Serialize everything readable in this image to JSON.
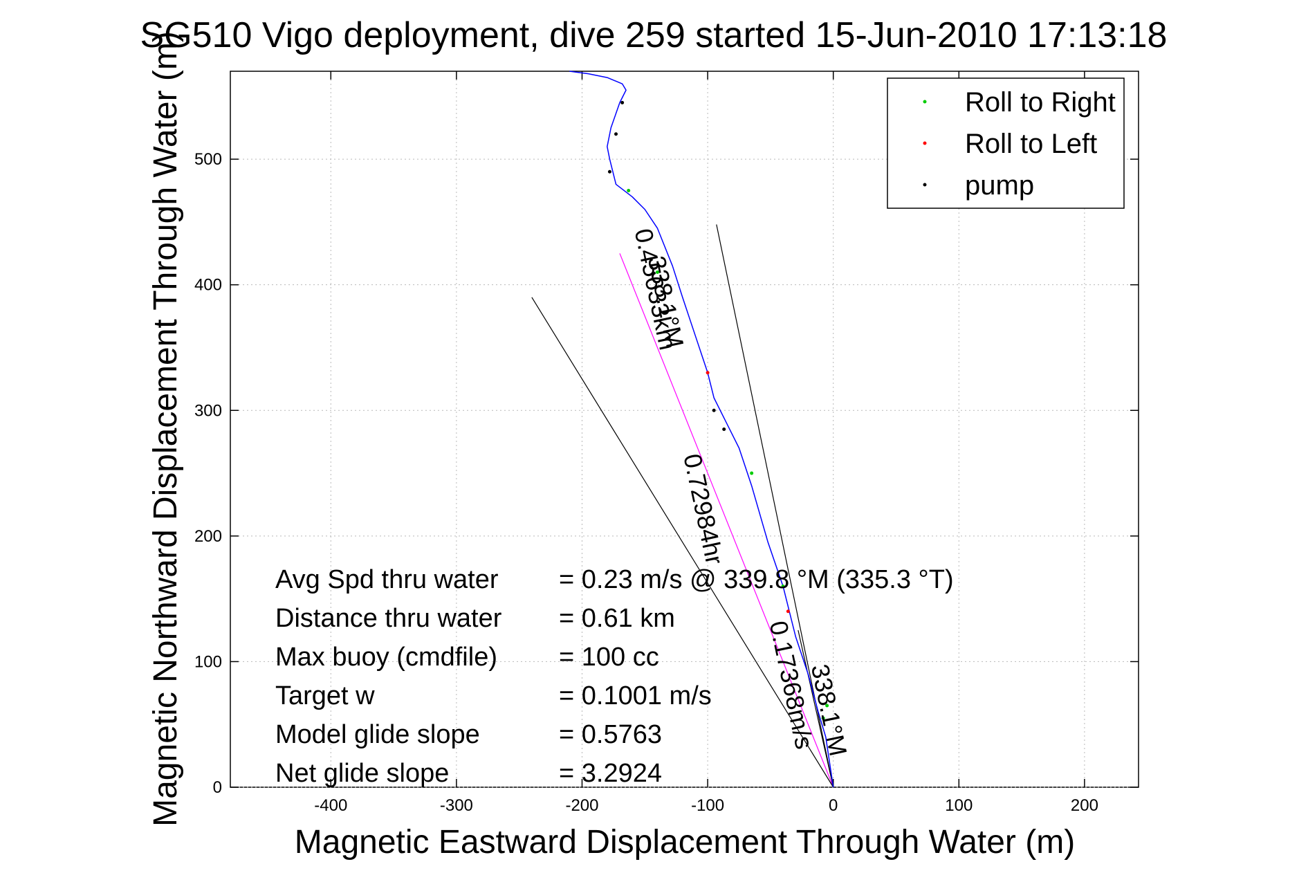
{
  "chart_data": {
    "type": "line",
    "title": "SG510 Vigo deployment, dive 259 started 15-Jun-2010 17:13:18",
    "xlabel": "Magnetic Eastward Displacement Through Water (m)",
    "ylabel": "Magnetic Northward Displacement Through Water (m)",
    "xlim": [
      -480,
      243
    ],
    "ylim": [
      0,
      570
    ],
    "xticks": [
      "-400",
      "-300",
      "-200",
      "-100",
      "0",
      "100",
      "200"
    ],
    "yticks": [
      "0",
      "100",
      "200",
      "300",
      "400",
      "500"
    ],
    "grid": true,
    "legend_position": "top-right",
    "legend": [
      {
        "label": "Roll to Right",
        "color": "#00cc00"
      },
      {
        "label": "Roll to Left",
        "color": "#ff0000"
      },
      {
        "label": "pump",
        "color": "#000000"
      }
    ],
    "track": {
      "name": "glider track",
      "color": "#0000ff",
      "x": [
        0,
        -6,
        -12,
        -20,
        -30,
        -40,
        -52,
        -65,
        -75,
        -85,
        -95,
        -100,
        -110,
        -120,
        -128,
        -140,
        -150,
        -160,
        -173,
        -178,
        -180,
        -177,
        -170,
        -165,
        -168,
        -180,
        -195,
        -210
      ],
      "y": [
        0,
        40,
        60,
        90,
        120,
        160,
        195,
        240,
        270,
        290,
        310,
        330,
        360,
        390,
        415,
        445,
        460,
        470,
        480,
        500,
        510,
        525,
        545,
        555,
        560,
        565,
        568,
        570
      ]
    },
    "markers": [
      {
        "type": "roll-right",
        "x": [
          -8,
          -5,
          -40,
          -65,
          -140,
          -163
        ],
        "y": [
          55,
          65,
          160,
          250,
          410,
          475
        ]
      },
      {
        "type": "roll-left",
        "x": [
          -36,
          -100
        ],
        "y": [
          140,
          330
        ]
      },
      {
        "type": "pump",
        "x": [
          -95,
          -87,
          -178,
          -173,
          -168
        ],
        "y": [
          300,
          285,
          490,
          520,
          545
        ]
      }
    ],
    "reference_lines": [
      {
        "name": "net displacement",
        "color": "#ff00ff",
        "x": [
          0,
          -170
        ],
        "y": [
          0,
          425
        ]
      },
      {
        "name": "bounding line 1",
        "color": "#000000",
        "x": [
          0,
          -240
        ],
        "y": [
          0,
          390
        ]
      },
      {
        "name": "bounding line 2",
        "color": "#000000",
        "x": [
          0,
          -93
        ],
        "y": [
          0,
          448
        ]
      },
      {
        "name": "short line",
        "color": "#000000",
        "x": [
          0,
          -28
        ],
        "y": [
          0,
          125
        ]
      }
    ],
    "track_labels": [
      {
        "text": "0.45633km",
        "x": -148,
        "y": 395,
        "angle": 78
      },
      {
        "text": "338.1°M",
        "x": -140,
        "y": 385,
        "angle": 78
      },
      {
        "text": "0.72984hr",
        "x": -110,
        "y": 220,
        "angle": 78
      },
      {
        "text": "0.17368m/s",
        "x": -40,
        "y": 80,
        "angle": 78
      },
      {
        "text": "338.1°M",
        "x": -10,
        "y": 60,
        "angle": 78
      }
    ],
    "annotations": [
      {
        "label": "Avg Spd thru water",
        "value": "=  0.23 m/s @ 339.8 °M (335.3 °T)"
      },
      {
        "label": "Distance thru water",
        "value": "=  0.61 km"
      },
      {
        "label": "Max buoy (cmdfile)",
        "value": "= 100 cc"
      },
      {
        "label": "Target w",
        "value": "= 0.1001 m/s"
      },
      {
        "label": "Model glide slope",
        "value": "= 0.5763"
      },
      {
        "label": "Net glide slope",
        "value": "= 3.2924"
      }
    ]
  }
}
